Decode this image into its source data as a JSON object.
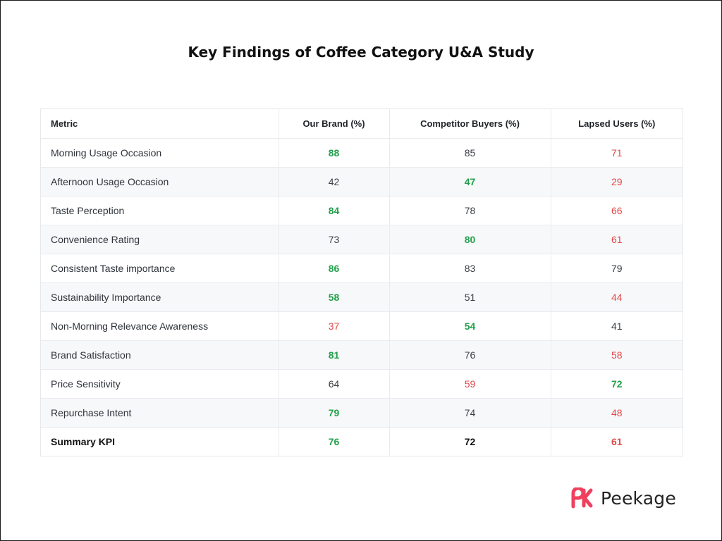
{
  "title": "Key Findings of Coffee Category U&A Study",
  "colors": {
    "positive": "#22a04b",
    "negative": "#e04848",
    "neutral": "#3a3f46",
    "brand": "#f0405e"
  },
  "table": {
    "headers": [
      "Metric",
      "Our Brand (%)",
      "Competitor Buyers (%)",
      "Lapsed Users (%)"
    ],
    "rows": [
      {
        "metric": "Morning Usage Occasion",
        "cells": [
          {
            "v": "88",
            "s": "pos"
          },
          {
            "v": "85",
            "s": "neu"
          },
          {
            "v": "71",
            "s": "neg"
          }
        ]
      },
      {
        "metric": "Afternoon Usage Occasion",
        "cells": [
          {
            "v": "42",
            "s": "neu"
          },
          {
            "v": "47",
            "s": "pos"
          },
          {
            "v": "29",
            "s": "neg"
          }
        ]
      },
      {
        "metric": "Taste Perception",
        "cells": [
          {
            "v": "84",
            "s": "pos"
          },
          {
            "v": "78",
            "s": "neu"
          },
          {
            "v": "66",
            "s": "neg"
          }
        ]
      },
      {
        "metric": "Convenience Rating",
        "cells": [
          {
            "v": "73",
            "s": "neu"
          },
          {
            "v": "80",
            "s": "pos"
          },
          {
            "v": "61",
            "s": "neg"
          }
        ]
      },
      {
        "metric": "Consistent Taste importance",
        "cells": [
          {
            "v": "86",
            "s": "pos"
          },
          {
            "v": "83",
            "s": "neu"
          },
          {
            "v": "79",
            "s": "neu"
          }
        ]
      },
      {
        "metric": "Sustainability Importance",
        "cells": [
          {
            "v": "58",
            "s": "pos"
          },
          {
            "v": "51",
            "s": "neu"
          },
          {
            "v": "44",
            "s": "neg"
          }
        ]
      },
      {
        "metric": "Non-Morning Relevance Awareness",
        "cells": [
          {
            "v": "37",
            "s": "neg"
          },
          {
            "v": "54",
            "s": "pos"
          },
          {
            "v": "41",
            "s": "neu"
          }
        ]
      },
      {
        "metric": "Brand Satisfaction",
        "cells": [
          {
            "v": "81",
            "s": "pos"
          },
          {
            "v": "76",
            "s": "neu"
          },
          {
            "v": "58",
            "s": "neg"
          }
        ]
      },
      {
        "metric": "Price Sensitivity",
        "cells": [
          {
            "v": "64",
            "s": "neu"
          },
          {
            "v": "59",
            "s": "neg"
          },
          {
            "v": "72",
            "s": "pos"
          }
        ]
      },
      {
        "metric": "Repurchase Intent",
        "cells": [
          {
            "v": "79",
            "s": "pos"
          },
          {
            "v": "74",
            "s": "neu"
          },
          {
            "v": "48",
            "s": "neg"
          }
        ]
      },
      {
        "metric": "Summary KPI",
        "summary": true,
        "cells": [
          {
            "v": "76",
            "s": "pos"
          },
          {
            "v": "72",
            "s": "neu"
          },
          {
            "v": "61",
            "s": "neg"
          }
        ]
      }
    ]
  },
  "logo": {
    "text": "Peekage",
    "icon": "peekage-logo-icon"
  }
}
